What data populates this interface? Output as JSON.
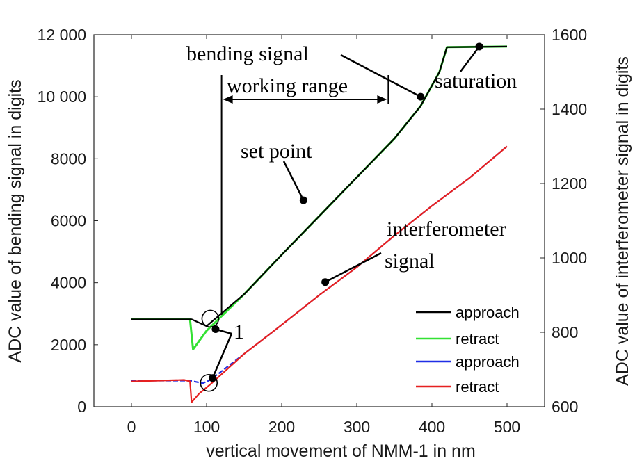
{
  "chart_data": {
    "type": "line",
    "xlabel": "vertical movement of NMM-1 in nm",
    "ylabel_left": "ADC value of bending signal in digits",
    "ylabel_right": "ADC value of interferometer signal in digits",
    "xlim": [
      -50,
      550
    ],
    "ylim_left": [
      0,
      12000
    ],
    "ylim_right": [
      600,
      1600
    ],
    "x_ticks": [
      "0",
      "100",
      "200",
      "300",
      "400",
      "500"
    ],
    "y_left_ticks": [
      "0",
      "2000",
      "4000",
      "6000",
      "8000",
      "10 000",
      "12 000"
    ],
    "y_right_ticks": [
      "600",
      "800",
      "1000",
      "1200",
      "1400",
      "1600"
    ],
    "grid": false,
    "legend_position": "bottom-right",
    "series": [
      {
        "name": "approach",
        "axis": "left",
        "color": "#000000",
        "x": [
          0,
          80,
          100,
          150,
          200,
          250,
          300,
          350,
          385,
          410,
          420,
          500
        ],
        "y": [
          2820,
          2820,
          2600,
          3630,
          4900,
          6150,
          7400,
          8650,
          9700,
          10800,
          11600,
          11620
        ]
      },
      {
        "name": "retract",
        "axis": "left",
        "color": "#33e133",
        "x": [
          0,
          70,
          78,
          82,
          100,
          150,
          200,
          250,
          300,
          350,
          385,
          410,
          420,
          500
        ],
        "y": [
          2820,
          2820,
          2820,
          1850,
          2450,
          3630,
          4900,
          6150,
          7400,
          8650,
          9700,
          10800,
          11600,
          11620
        ]
      },
      {
        "name": "approach",
        "axis": "right",
        "color": "#1f2ee6",
        "x": [
          0,
          78,
          95,
          105,
          150,
          200,
          250,
          300,
          350,
          400,
          450,
          500
        ],
        "y": [
          670,
          670,
          663,
          672,
          742,
          820,
          900,
          975,
          1060,
          1140,
          1215,
          1300
        ]
      },
      {
        "name": "retract",
        "axis": "right",
        "color": "#e62020",
        "x": [
          0,
          70,
          78,
          80,
          90,
          105,
          150,
          200,
          250,
          300,
          350,
          400,
          450,
          500
        ],
        "y": [
          668,
          672,
          668,
          612,
          635,
          660,
          742,
          820,
          900,
          975,
          1060,
          1140,
          1215,
          1300
        ]
      }
    ],
    "annotations": {
      "bending_signal": "bending signal",
      "working_range": "working range",
      "saturation": "saturation",
      "set_point": "set point",
      "interferometer_line1": "interferometer",
      "interferometer_line2": "signal",
      "marker_one": "1"
    }
  }
}
